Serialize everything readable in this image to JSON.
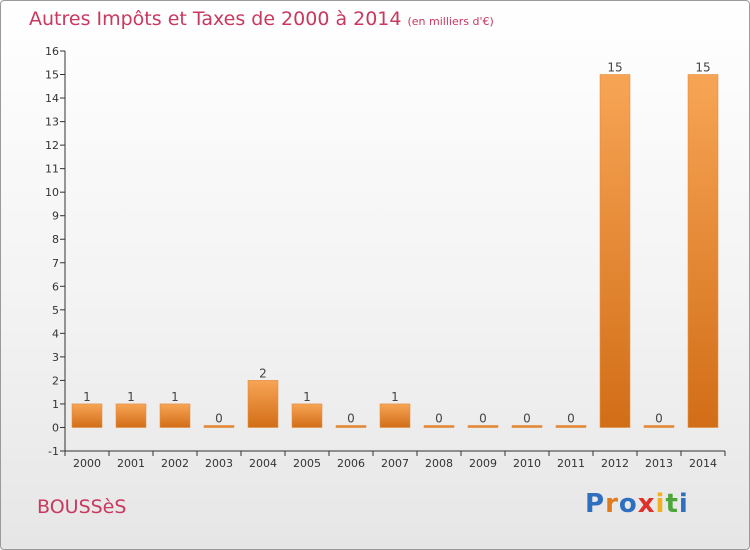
{
  "header": {
    "title": "Autres Impôts et Taxes de 2000 à 2014",
    "subtitle": "(en milliers d'€)"
  },
  "footer": {
    "commune": "BOUSSèS",
    "logo": "Proxiti",
    "logo_colors": [
      "#2e6fbf",
      "#e07a1f",
      "#2e6fbf",
      "#e0302a",
      "#f2b01e",
      "#4ea63a",
      "#2e6fbf"
    ]
  },
  "colors": {
    "bar_light": "#f7a555",
    "bar_dark": "#d26d17",
    "title": "#c8385f"
  },
  "chart_data": {
    "type": "bar",
    "title": "Autres Impôts et Taxes de 2000 à 2014",
    "subtitle": "(en milliers d'€)",
    "categories": [
      "2000",
      "2001",
      "2002",
      "2003",
      "2004",
      "2005",
      "2006",
      "2007",
      "2008",
      "2009",
      "2010",
      "2011",
      "2012",
      "2013",
      "2014"
    ],
    "values": [
      1,
      1,
      1,
      0,
      2,
      1,
      0,
      1,
      0,
      0,
      0,
      0,
      15,
      0,
      15
    ],
    "ylim": [
      -1,
      16
    ],
    "yticks": [
      -1,
      0,
      1,
      2,
      3,
      4,
      5,
      6,
      7,
      8,
      9,
      10,
      11,
      12,
      13,
      14,
      15,
      16
    ],
    "grid": false,
    "legend": "none"
  }
}
